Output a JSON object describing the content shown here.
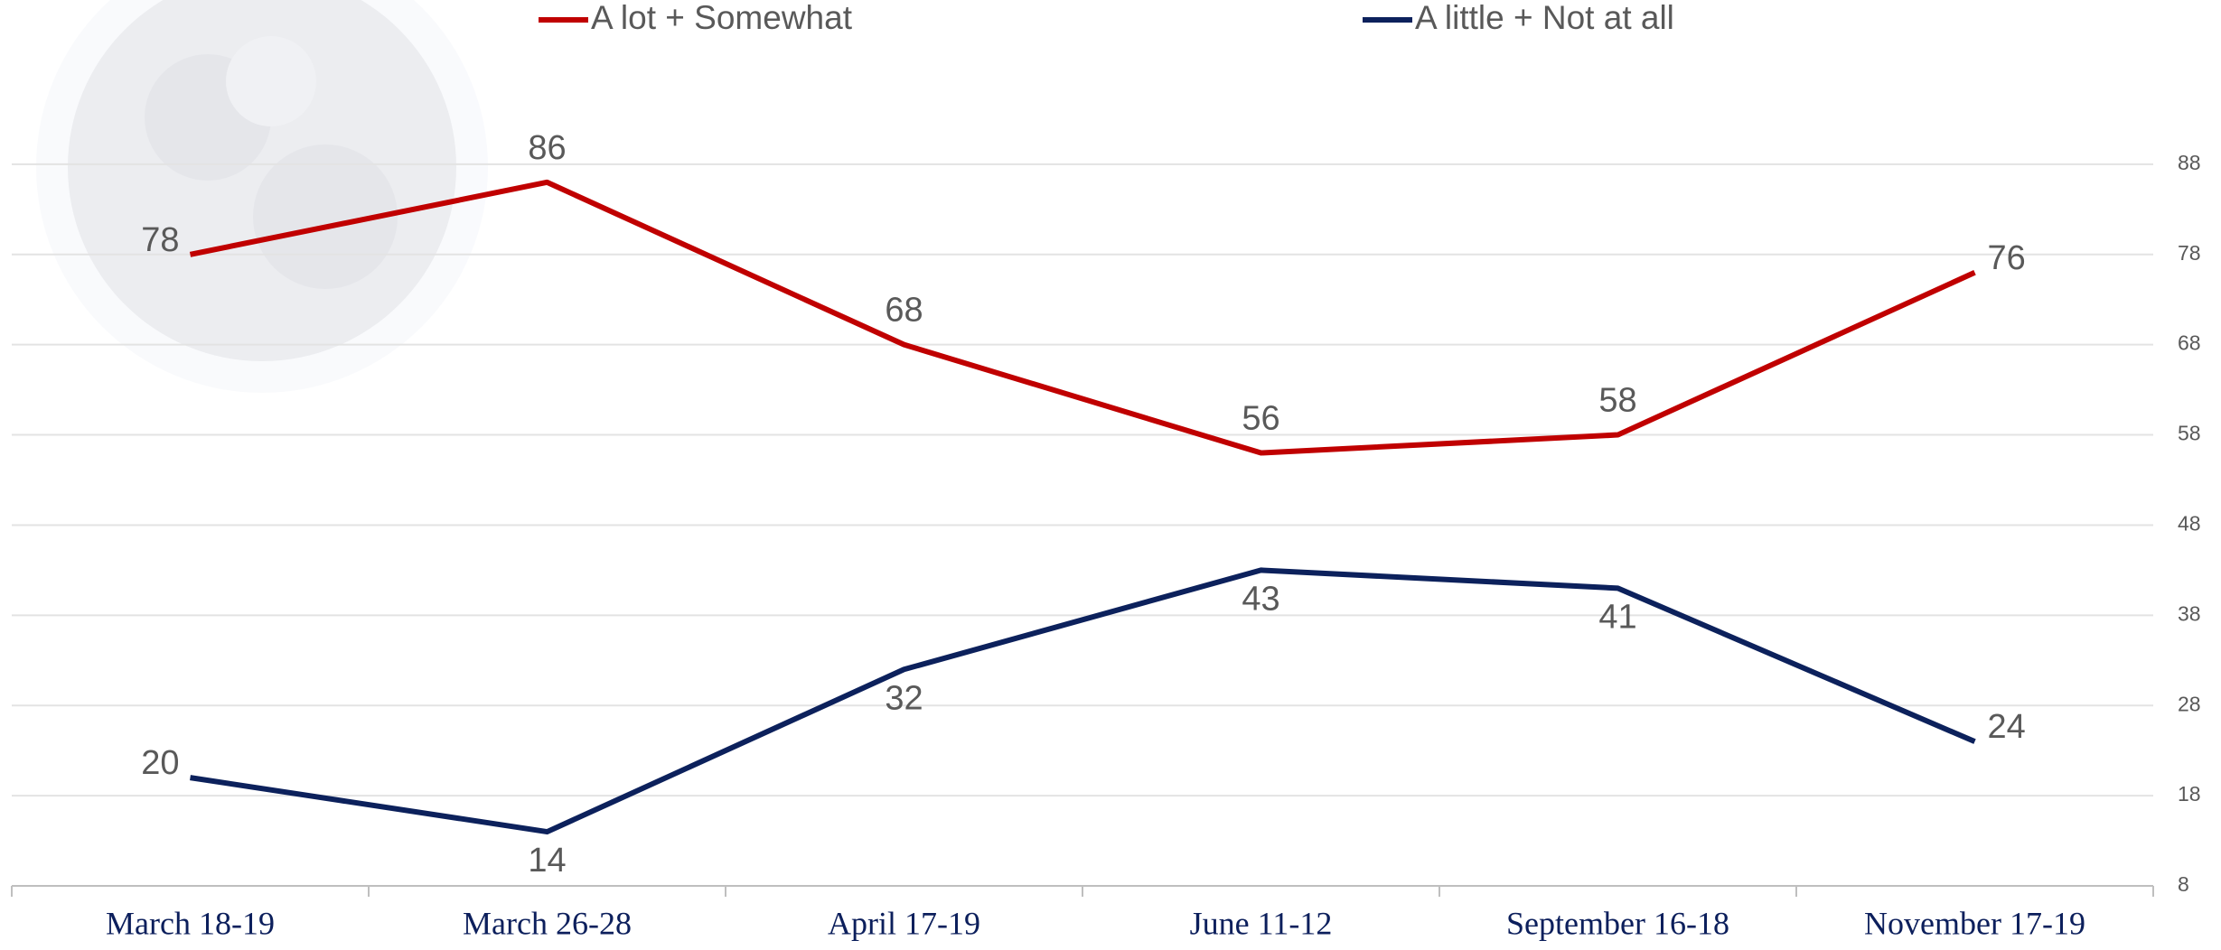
{
  "chart_data": {
    "type": "line",
    "categories": [
      "March 18-19",
      "March 26-28",
      "April 17-19",
      "June 11-12",
      "September 16-18",
      "November 17-19"
    ],
    "series": [
      {
        "name": "A lot + Somewhat",
        "color": "#c00000",
        "values": [
          78,
          86,
          68,
          56,
          58,
          76
        ]
      },
      {
        "name": "A little + Not at all",
        "color": "#0c215c",
        "values": [
          20,
          14,
          32,
          43,
          41,
          24
        ]
      }
    ],
    "ylim": [
      8,
      98
    ],
    "yticks": [
      8,
      18,
      28,
      38,
      48,
      58,
      68,
      78,
      88
    ],
    "grid": true,
    "legend": "top"
  }
}
